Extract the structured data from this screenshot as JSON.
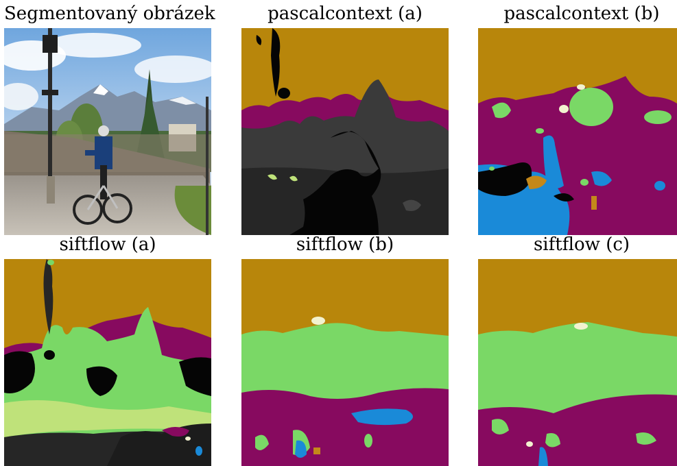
{
  "panels": [
    {
      "title": "Segmentovaný obrázek"
    },
    {
      "title": "pascalcontext (a)"
    },
    {
      "title": "pascalcontext (b)"
    },
    {
      "title": "siftflow (a)"
    },
    {
      "title": "siftflow (b)"
    },
    {
      "title": "siftflow (c)"
    }
  ],
  "colors": {
    "sky": "#b8860b",
    "mountain": "#870a5f",
    "tree": "#7ad866",
    "grass": "#bfe27a",
    "road": "#262626",
    "building": "#3a3a3a",
    "black": "#050505",
    "person": "#1a8ad8",
    "bicycle": "#c4881a",
    "cloud": "#f2f2d0"
  }
}
